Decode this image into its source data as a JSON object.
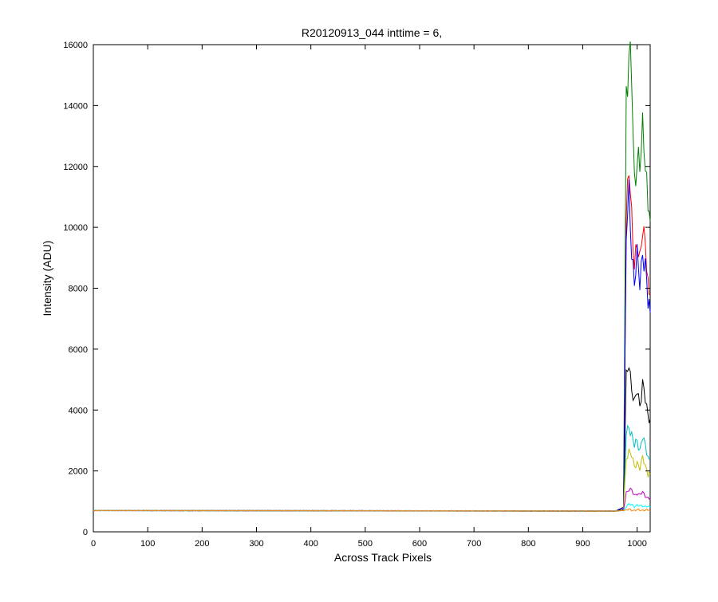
{
  "chart_data": {
    "type": "line",
    "title": "R20120913_044 inttime = 6,",
    "xlabel": "Across Track Pixels",
    "ylabel": "Intensity (ADU)",
    "xlim": [
      0,
      1024
    ],
    "ylim": [
      0,
      16000
    ],
    "xticks": [
      0,
      100,
      200,
      300,
      400,
      500,
      600,
      700,
      800,
      900,
      1000
    ],
    "yticks": [
      0,
      2000,
      4000,
      6000,
      8000,
      10000,
      12000,
      14000,
      16000
    ],
    "grid": false,
    "legend": "none",
    "series": [
      {
        "color": "#008000",
        "x": [
          0,
          960,
          975,
          980,
          985,
          990,
          995,
          1000,
          1005,
          1010,
          1015,
          1020,
          1024
        ],
        "y": [
          700,
          680,
          800,
          14500,
          15700,
          14800,
          11500,
          12400,
          11800,
          13200,
          12500,
          10500,
          10200
        ]
      },
      {
        "color": "#ff0000",
        "x": [
          0,
          960,
          975,
          980,
          985,
          990,
          995,
          1000,
          1005,
          1010,
          1015,
          1020,
          1024
        ],
        "y": [
          700,
          680,
          800,
          10500,
          11800,
          10200,
          9000,
          9400,
          8700,
          10200,
          9600,
          7900,
          7800
        ]
      },
      {
        "color": "#0000ff",
        "x": [
          0,
          960,
          975,
          980,
          985,
          990,
          995,
          1000,
          1005,
          1010,
          1015,
          1020,
          1024
        ],
        "y": [
          700,
          680,
          800,
          9800,
          10900,
          9300,
          8300,
          8900,
          8200,
          9300,
          8600,
          7500,
          7200
        ]
      },
      {
        "color": "#000000",
        "x": [
          0,
          960,
          975,
          980,
          985,
          990,
          995,
          1000,
          1005,
          1010,
          1015,
          1020,
          1024
        ],
        "y": [
          700,
          680,
          750,
          5000,
          5500,
          4800,
          4200,
          4600,
          4200,
          4900,
          4300,
          3800,
          3700
        ]
      },
      {
        "color": "#00bfbf",
        "x": [
          0,
          960,
          975,
          980,
          985,
          990,
          995,
          1000,
          1005,
          1010,
          1015,
          1020,
          1024
        ],
        "y": [
          700,
          680,
          720,
          3200,
          3500,
          3200,
          2800,
          3000,
          2700,
          3100,
          2800,
          2500,
          2400
        ]
      },
      {
        "color": "#bfbf00",
        "x": [
          0,
          960,
          975,
          980,
          985,
          990,
          995,
          1000,
          1005,
          1010,
          1015,
          1020,
          1024
        ],
        "y": [
          700,
          680,
          720,
          2400,
          2700,
          2500,
          2100,
          2300,
          2100,
          2400,
          2200,
          1900,
          1900
        ]
      },
      {
        "color": "#bf00bf",
        "x": [
          0,
          960,
          975,
          980,
          985,
          990,
          995,
          1000,
          1005,
          1010,
          1015,
          1020,
          1024
        ],
        "y": [
          700,
          680,
          710,
          1300,
          1400,
          1350,
          1200,
          1280,
          1200,
          1300,
          1200,
          1100,
          1100
        ]
      },
      {
        "color": "#00ffff",
        "x": [
          0,
          960,
          975,
          980,
          985,
          990,
          995,
          1000,
          1005,
          1010,
          1015,
          1020,
          1024
        ],
        "y": [
          700,
          680,
          700,
          850,
          900,
          880,
          850,
          870,
          840,
          860,
          840,
          820,
          810
        ]
      },
      {
        "color": "#ff8000",
        "x": [
          0,
          960,
          975,
          980,
          985,
          990,
          995,
          1000,
          1005,
          1010,
          1015,
          1020,
          1024
        ],
        "y": [
          700,
          680,
          700,
          720,
          730,
          720,
          710,
          720,
          710,
          720,
          710,
          700,
          700
        ]
      }
    ]
  }
}
